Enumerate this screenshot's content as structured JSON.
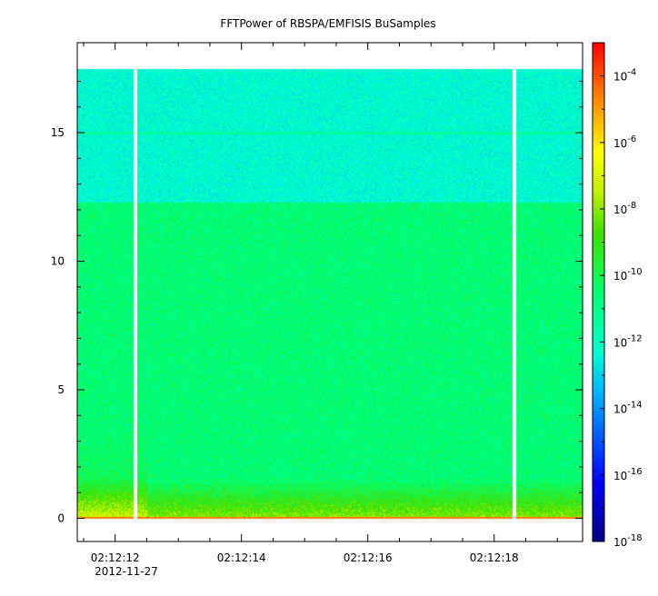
{
  "chart_data": {
    "type": "heatmap",
    "title": "FFTPower of RBSPA/EMFISIS  BuSamples",
    "xlabel": "",
    "ylabel": "",
    "x_ticks": [
      "02:12:12",
      "02:12:14",
      "02:12:16",
      "02:12:18"
    ],
    "x_date_label": "2012-11-27",
    "x_range_seconds": [
      11.4,
      19.4
    ],
    "y_ticks": [
      0,
      5,
      10,
      15
    ],
    "ylim": [
      -0.9,
      18.5
    ],
    "y_data_max": 17.5,
    "colorbar": {
      "scale": "log",
      "range": [
        1e-18,
        0.001
      ],
      "tick_base": "10",
      "tick_exponents": [
        "-4",
        "-6",
        "-8",
        "-10",
        "-12",
        "-14",
        "-16",
        "-18"
      ],
      "tick_values": [
        -4,
        -6,
        -8,
        -10,
        -12,
        -14,
        -16,
        -18
      ]
    },
    "gaps_seconds": [
      [
        12.28,
        12.34
      ],
      [
        18.28,
        18.34
      ]
    ],
    "features": {
      "band_break_y": 12.3,
      "upper_band_log_power": -12.3,
      "lower_band_log_power": -10.6,
      "line_y": 15.0,
      "line_log_power": -11.3,
      "low_freq_log_power": -8.0
    }
  }
}
